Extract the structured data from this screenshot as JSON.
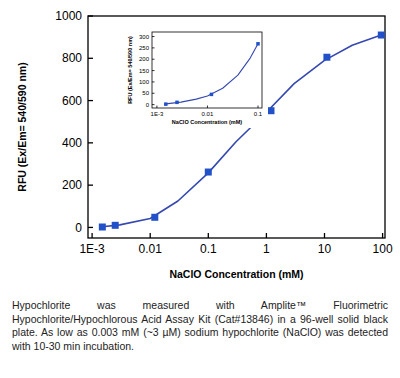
{
  "chart_data": [
    {
      "type": "scatter",
      "x_label": "NaClO Concentration (mM)",
      "y_label": "RFU (Ex/Em= 540/590 nm)",
      "log": "x",
      "grid": false,
      "xlim": [
        0.00085,
        110
      ],
      "ylim": [
        -50,
        1000
      ],
      "xticks": [
        {
          "value": 0.001,
          "label": "1E-3"
        },
        0.01,
        0.1,
        1,
        10,
        100
      ],
      "yticks": [
        0,
        200,
        400,
        600,
        800,
        1000
      ],
      "series": [
        {
          "type": "scatter",
          "marker": "square",
          "color": "#2150c8",
          "x": [
            0.0015,
            0.0025,
            0.012,
            0.1,
            1.2,
            11,
            95
          ],
          "values": [
            2,
            10,
            48,
            262,
            552,
            805,
            910
          ]
        },
        {
          "type": "line",
          "line_style": "solid",
          "color": "#3548b0",
          "x": [
            0.0015,
            0.003,
            0.01,
            0.03,
            0.1,
            0.3,
            1,
            3,
            10,
            30,
            100
          ],
          "values": [
            3,
            12,
            42,
            125,
            258,
            405,
            545,
            680,
            790,
            862,
            912
          ]
        }
      ]
    },
    {
      "type": "scatter",
      "x_label": "NaClO Concentration (mM)",
      "y_label": "RFU (Ex/Em= 540/590 nm)",
      "log": "x",
      "grid": false,
      "xlim": [
        0.0008,
        0.12
      ],
      "ylim": [
        -15,
        320
      ],
      "xticks": [
        {
          "value": 0.001,
          "label": "1E-3"
        },
        0.01,
        0.1
      ],
      "yticks": [
        0,
        50,
        100,
        150,
        200,
        250,
        300
      ],
      "series": [
        {
          "type": "scatter",
          "marker": "square",
          "color": "#2150c8",
          "x": [
            0.0015,
            0.0025,
            0.012,
            0.1
          ],
          "values": [
            2,
            10,
            45,
            268
          ]
        },
        {
          "type": "line",
          "line_style": "solid",
          "color": "#3548b0",
          "x": [
            0.0015,
            0.003,
            0.006,
            0.01,
            0.02,
            0.04,
            0.07,
            0.1
          ],
          "values": [
            3,
            11,
            24,
            38,
            72,
            130,
            205,
            268
          ]
        }
      ]
    }
  ],
  "caption": "Hypochlorite was measured with Amplite™ Fluorimetric Hypochlorite/Hypochlorous Acid Assay Kit (Cat#13846) in a 96-well solid black plate. As low as 0.003 mM (~3 µM) sodium hypochlorite (NaClO) was detected with 10-30 min incubation."
}
